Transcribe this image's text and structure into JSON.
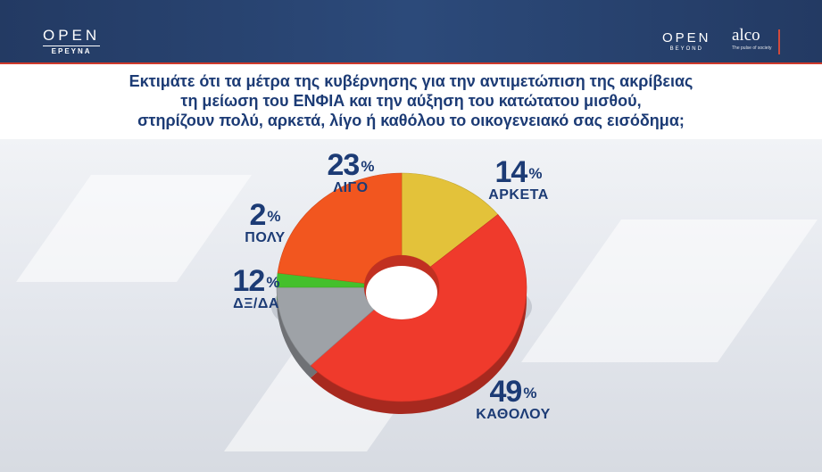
{
  "header": {
    "logo_left": {
      "brand": "OPEN",
      "sub": "ΕΡΕΥΝΑ"
    },
    "logo_right": {
      "brand": "OPEN",
      "sub": "BEYOND"
    },
    "partner": {
      "name": "alco",
      "tagline": "The pulse of society"
    }
  },
  "question": {
    "line1": "Εκτιμάτε ότι τα μέτρα της κυβέρνησης για την αντιμετώπιση της ακρίβειας",
    "line2": "τη μείωση του ΕΝΦΙΑ και την αύξηση του κατώτατου μισθού,",
    "line3": "στηρίζουν πολύ, αρκετά, λίγο ή καθόλου το οικογενειακό σας εισόδημα;"
  },
  "chart_data": {
    "type": "pie",
    "style": "donut-3d",
    "series": [
      {
        "label": "ΑΡΚΕΤΑ",
        "value": 14,
        "color": "#e3c23a"
      },
      {
        "label": "ΚΑΘΟΛΟΥ",
        "value": 49,
        "color": "#ef3a2c"
      },
      {
        "label": "ΔΞ/ΔΑ",
        "value": 12,
        "color": "#9ea2a7"
      },
      {
        "label": "ΠΟΛΥ",
        "value": 2,
        "color": "#44c02c"
      },
      {
        "label": "ΛΙΓΟ",
        "value": 23,
        "color": "#f2561f"
      }
    ],
    "unit": "%"
  },
  "colors": {
    "header_bg": "#233a63",
    "accent_red": "#cf3a2b",
    "text_navy": "#1c3b75"
  }
}
